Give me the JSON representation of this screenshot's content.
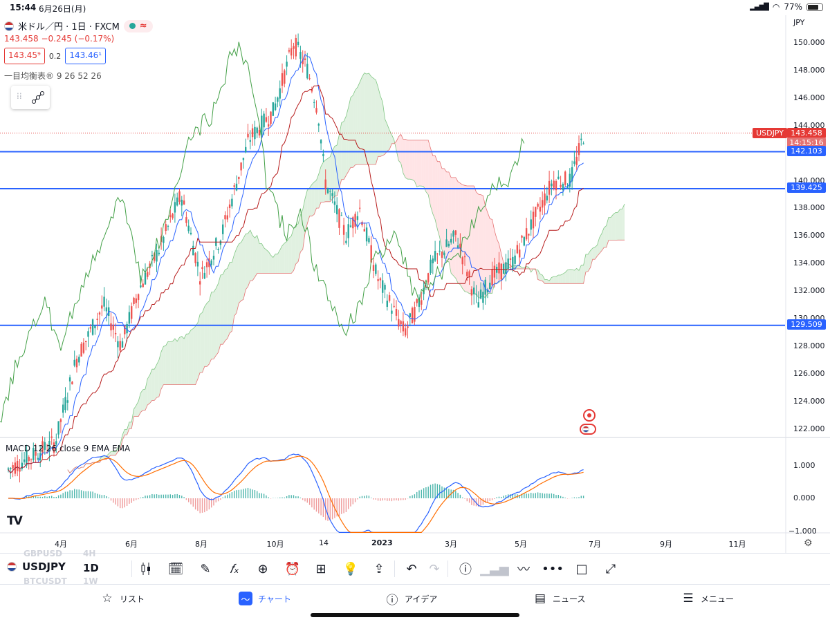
{
  "status_bar": {
    "time": "15:44",
    "date": "6月26日(月)",
    "battery": "77%",
    "battery_level": 0.77
  },
  "legend": {
    "symbol_title": "米ドル／円 · 1日 · FXCM",
    "last_price": "143.458",
    "change": "−0.245 (−0.17%)",
    "sell_price": "143.45⁹",
    "spread": "0.2",
    "buy_price": "143.46¹",
    "ichimoku": "一目均衡表® 9 26 52 26"
  },
  "price_axis": {
    "currency": "JPY",
    "labels": [
      "150.000",
      "148.000",
      "146.000",
      "144.000",
      "142.000",
      "140.000",
      "138.000",
      "136.000",
      "134.000",
      "132.000",
      "130.000",
      "128.000",
      "126.000",
      "124.000",
      "122.000"
    ],
    "symbol_tag": "USDJPY",
    "last_price_tag": "143.458",
    "countdown": "14:15:16",
    "level_tags": [
      "142.103",
      "139.425",
      "129.509"
    ]
  },
  "horizontal_levels": [
    142.103,
    139.425,
    129.509
  ],
  "macd": {
    "label": "MACD 12 26 close 9 EMA EMA",
    "axis_labels": [
      "1.000",
      "0.000",
      "−1.000"
    ]
  },
  "time_axis": {
    "labels": [
      "4月",
      "6月",
      "8月",
      "10月",
      "14",
      "2023",
      "3月",
      "5月",
      "7月",
      "9月",
      "11月"
    ]
  },
  "toolbar": {
    "symbol": "USDJPY",
    "interval": "1D",
    "ghost_symbols": [
      "GBPUSD",
      "4H",
      "BTCUSDT",
      "1W"
    ],
    "icons": [
      "candles-icon",
      "calendar-range-icon",
      "pen-icon",
      "function-icon",
      "plus-circle-icon",
      "alarm-icon",
      "grid-icon",
      "bulb-icon",
      "share-icon",
      "undo-icon",
      "redo-icon",
      "info-icon",
      "bars-chart-icon",
      "trend-icon",
      "more-icon",
      "square-icon",
      "fullscreen-icon"
    ]
  },
  "nav": {
    "items": [
      {
        "label": "リスト",
        "icon": "star-icon"
      },
      {
        "label": "チャート",
        "icon": "chart-icon"
      },
      {
        "label": "アイデア",
        "icon": "idea-icon"
      },
      {
        "label": "ニュース",
        "icon": "news-icon"
      },
      {
        "label": "メニュー",
        "icon": "menu-icon"
      }
    ]
  },
  "colors": {
    "up": "#26a69a",
    "down": "#ef5350",
    "level": "#2962ff",
    "conversion": "#2962ff",
    "base": "#b71c1c",
    "lagging": "#43a047",
    "cloud_bull": "#c8e6c9",
    "cloud_bear": "#ffcdd2",
    "macd": "#2962ff",
    "signal": "#ff6d00"
  }
}
